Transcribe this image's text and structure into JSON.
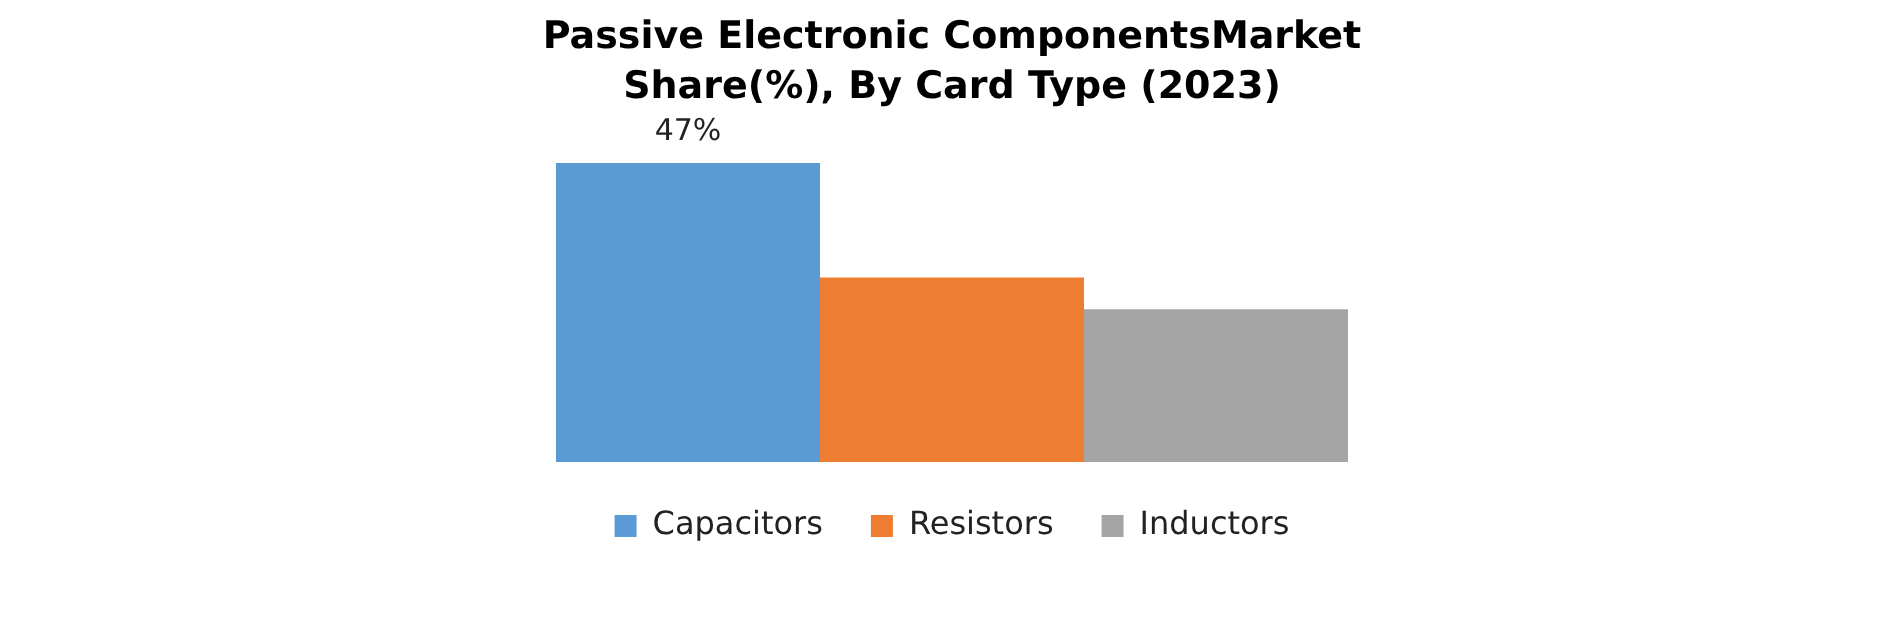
{
  "chart_data": {
    "type": "bar",
    "title": "Passive Electronic ComponentsMarket Share(%), By Card Type (2023)",
    "categories": [
      null
    ],
    "legend": "bottom",
    "series": [
      {
        "name": "Capacitors",
        "color": "#5b9bd5",
        "values": [
          47
        ],
        "value_labels": [
          "47%"
        ]
      },
      {
        "name": "Resistors",
        "color": "#ed7d31",
        "values": [
          29
        ],
        "value_labels": [
          null
        ]
      },
      {
        "name": "Inductors",
        "color": "#a5a5a5",
        "values": [
          24
        ],
        "value_labels": [
          null
        ]
      }
    ]
  }
}
